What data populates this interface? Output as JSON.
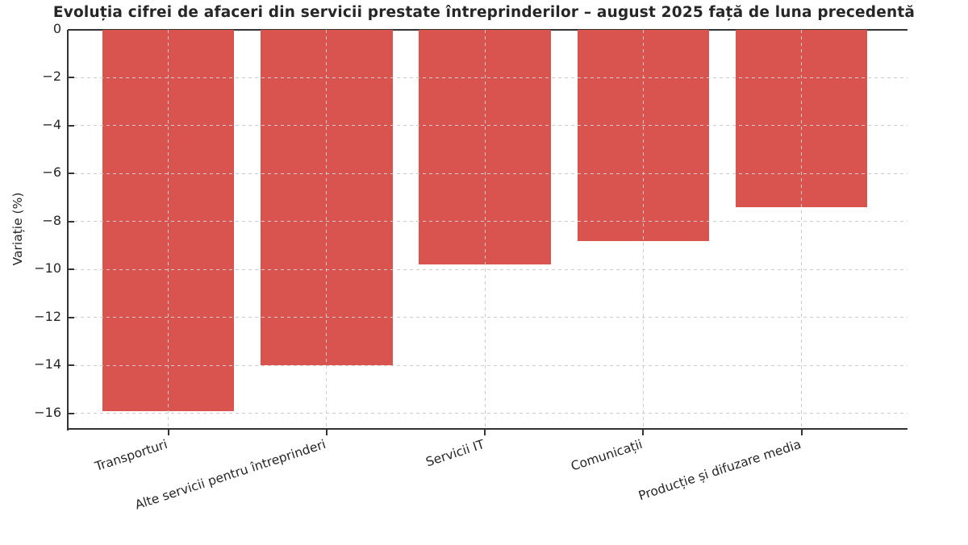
{
  "chart_data": {
    "type": "bar",
    "title": "Evoluția cifrei de afaceri din servicii prestate întreprinderilor – august 2025 față de luna precedentă",
    "ylabel": "Variație (%)",
    "xlabel": "",
    "categories": [
      "Transporturi",
      "Alte servicii pentru întreprinderi",
      "Servicii IT",
      "Comunicații",
      "Producție și difuzare media"
    ],
    "values": [
      -15.9,
      -14.0,
      -9.8,
      -8.8,
      -7.4
    ],
    "yticks": [
      0,
      -2,
      -4,
      -6,
      -8,
      -10,
      -12,
      -14,
      -16
    ],
    "ytick_labels": [
      "0",
      "−2",
      "−4",
      "−6",
      "−8",
      "−10",
      "−12",
      "−14",
      "−16"
    ],
    "ylim": [
      -16.65,
      0
    ],
    "grid": "dashed, both axes, drawn over bars",
    "legend": "none",
    "bar_color": "#d9534f",
    "grid_color": "#cccccc",
    "axis_color": "#333333",
    "text_color": "#262626",
    "xtick_rotation_deg": 18
  }
}
